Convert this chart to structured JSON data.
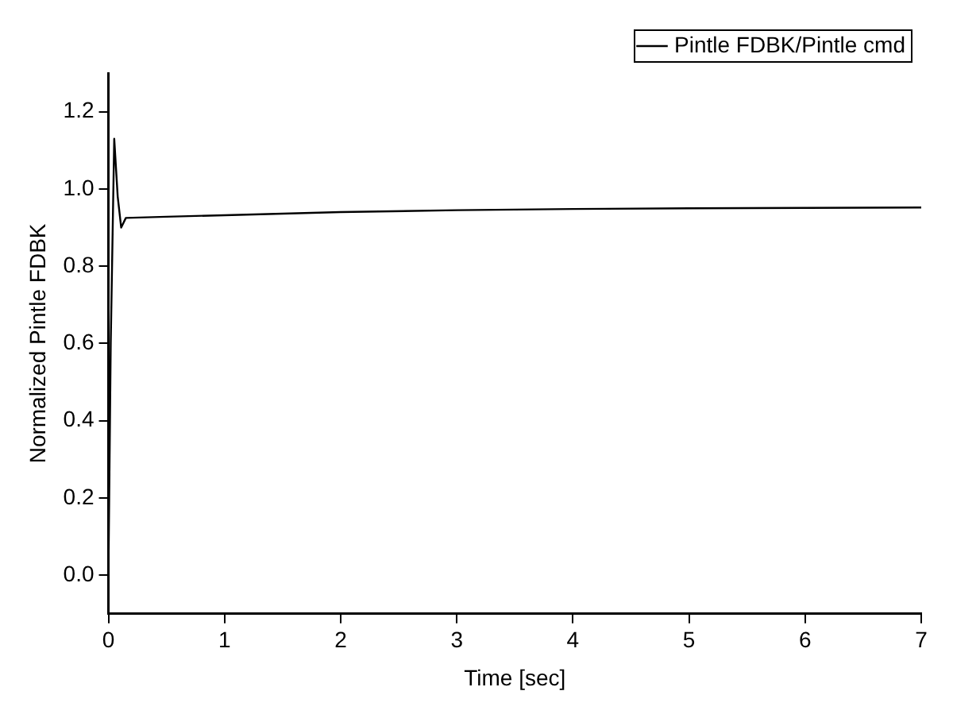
{
  "chart_data": {
    "type": "line",
    "xlabel": "Time [sec]",
    "ylabel": "Normalized Pintle FDBK",
    "x": [
      0,
      0.02,
      0.05,
      0.08,
      0.11,
      0.15,
      0.5,
      1,
      2,
      3,
      4,
      5,
      6,
      7
    ],
    "series": [
      {
        "name": "Pintle FDBK/Pintle cmd",
        "color": "#000000",
        "values": [
          0,
          0.6,
          1.13,
          0.98,
          0.9,
          0.925,
          0.928,
          0.932,
          0.94,
          0.945,
          0.948,
          0.95,
          0.951,
          0.952
        ]
      }
    ],
    "xlim": [
      0,
      7
    ],
    "xticks": [
      0,
      1,
      2,
      3,
      4,
      5,
      6,
      7
    ],
    "ylim": [
      -0.1,
      1.3
    ],
    "yticks": [
      {
        "value": 0,
        "label": "0.0"
      },
      0.2,
      0.4,
      0.6,
      0.8,
      {
        "value": 1,
        "label": "1.0"
      },
      1.2
    ],
    "grid": false,
    "legend": "top right",
    "marker": "none",
    "line_style": "solid"
  }
}
